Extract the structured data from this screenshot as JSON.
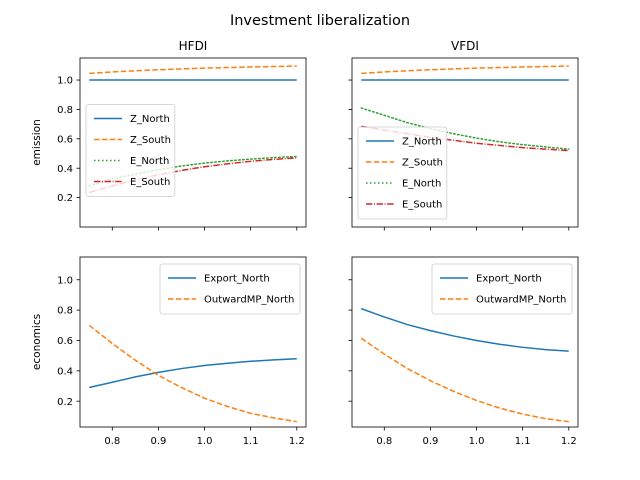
{
  "title": "Investment liberalization",
  "colors": {
    "blue": "#1f77b4",
    "orange": "#ff7f0e",
    "green": "#2ca02c",
    "red": "#d62728"
  },
  "chart_data": [
    {
      "id": "hfdi-emission",
      "type": "line",
      "title": "HFDI",
      "xlabel": "",
      "ylabel": "emission",
      "xlim": [
        0.73,
        1.22
      ],
      "ylim": [
        0.0,
        1.15
      ],
      "xticks": [
        0.8,
        0.9,
        1.0,
        1.1,
        1.2
      ],
      "yticks": [
        0.2,
        0.4,
        0.6,
        0.8,
        1.0
      ],
      "show_x_tick_labels": false,
      "show_y_tick_labels": true,
      "grid": false,
      "legend_loc": "center-left",
      "x": [
        0.75,
        0.8,
        0.85,
        0.9,
        0.95,
        1.0,
        1.05,
        1.1,
        1.15,
        1.2
      ],
      "series": [
        {
          "name": "Z_North",
          "color": "#1f77b4",
          "dash": "solid",
          "values": [
            1.0,
            1.0,
            1.0,
            1.0,
            1.0,
            1.0,
            1.0,
            1.0,
            1.0,
            1.0
          ]
        },
        {
          "name": "Z_South",
          "color": "#ff7f0e",
          "dash": "dashed",
          "values": [
            1.045,
            1.055,
            1.063,
            1.07,
            1.076,
            1.081,
            1.085,
            1.089,
            1.092,
            1.095
          ]
        },
        {
          "name": "E_North",
          "color": "#2ca02c",
          "dash": "dotted",
          "values": [
            0.28,
            0.325,
            0.36,
            0.39,
            0.415,
            0.435,
            0.45,
            0.462,
            0.472,
            0.48
          ]
        },
        {
          "name": "E_South",
          "color": "#d62728",
          "dash": "dashdot",
          "values": [
            0.235,
            0.28,
            0.32,
            0.355,
            0.385,
            0.41,
            0.43,
            0.447,
            0.46,
            0.47
          ]
        }
      ]
    },
    {
      "id": "vfdi-emission",
      "type": "line",
      "title": "VFDI",
      "xlabel": "",
      "ylabel": "",
      "xlim": [
        0.73,
        1.22
      ],
      "ylim": [
        0.0,
        1.15
      ],
      "xticks": [
        0.8,
        0.9,
        1.0,
        1.1,
        1.2
      ],
      "yticks": [
        0.2,
        0.4,
        0.6,
        0.8,
        1.0
      ],
      "show_x_tick_labels": false,
      "show_y_tick_labels": false,
      "grid": false,
      "legend_loc": "lower-left",
      "x": [
        0.75,
        0.8,
        0.85,
        0.9,
        0.95,
        1.0,
        1.05,
        1.1,
        1.15,
        1.2
      ],
      "series": [
        {
          "name": "Z_North",
          "color": "#1f77b4",
          "dash": "solid",
          "values": [
            1.0,
            1.0,
            1.0,
            1.0,
            1.0,
            1.0,
            1.0,
            1.0,
            1.0,
            1.0
          ]
        },
        {
          "name": "Z_South",
          "color": "#ff7f0e",
          "dash": "dashed",
          "values": [
            1.045,
            1.055,
            1.063,
            1.07,
            1.076,
            1.081,
            1.085,
            1.089,
            1.092,
            1.095
          ]
        },
        {
          "name": "E_North",
          "color": "#2ca02c",
          "dash": "dotted",
          "values": [
            0.81,
            0.76,
            0.71,
            0.67,
            0.635,
            0.605,
            0.58,
            0.56,
            0.545,
            0.53
          ]
        },
        {
          "name": "E_South",
          "color": "#d62728",
          "dash": "dashdot",
          "values": [
            0.685,
            0.66,
            0.635,
            0.61,
            0.59,
            0.57,
            0.555,
            0.54,
            0.53,
            0.52
          ]
        }
      ]
    },
    {
      "id": "hfdi-economics",
      "type": "line",
      "title": "",
      "xlabel": "",
      "ylabel": "economics",
      "xlim": [
        0.73,
        1.22
      ],
      "ylim": [
        0.03,
        1.15
      ],
      "xticks": [
        0.8,
        0.9,
        1.0,
        1.1,
        1.2
      ],
      "yticks": [
        0.2,
        0.4,
        0.6,
        0.8,
        1.0
      ],
      "show_x_tick_labels": true,
      "show_y_tick_labels": true,
      "grid": false,
      "legend_loc": "upper-right",
      "x": [
        0.75,
        0.8,
        0.85,
        0.9,
        0.95,
        1.0,
        1.05,
        1.1,
        1.15,
        1.2
      ],
      "series": [
        {
          "name": "Export_North",
          "color": "#1f77b4",
          "dash": "solid",
          "values": [
            0.29,
            0.325,
            0.36,
            0.39,
            0.415,
            0.435,
            0.45,
            0.463,
            0.472,
            0.48
          ]
        },
        {
          "name": "OutwardMP_North",
          "color": "#ff7f0e",
          "dash": "dashed",
          "values": [
            0.7,
            0.58,
            0.47,
            0.37,
            0.29,
            0.22,
            0.165,
            0.12,
            0.09,
            0.065
          ]
        }
      ]
    },
    {
      "id": "vfdi-economics",
      "type": "line",
      "title": "",
      "xlabel": "",
      "ylabel": "",
      "xlim": [
        0.73,
        1.22
      ],
      "ylim": [
        0.03,
        1.15
      ],
      "xticks": [
        0.8,
        0.9,
        1.0,
        1.1,
        1.2
      ],
      "yticks": [
        0.2,
        0.4,
        0.6,
        0.8,
        1.0
      ],
      "show_x_tick_labels": true,
      "show_y_tick_labels": false,
      "grid": false,
      "legend_loc": "upper-right",
      "x": [
        0.75,
        0.8,
        0.85,
        0.9,
        0.95,
        1.0,
        1.05,
        1.1,
        1.15,
        1.2
      ],
      "series": [
        {
          "name": "Export_North",
          "color": "#1f77b4",
          "dash": "solid",
          "values": [
            0.81,
            0.755,
            0.705,
            0.665,
            0.63,
            0.6,
            0.575,
            0.555,
            0.54,
            0.53
          ]
        },
        {
          "name": "OutwardMP_North",
          "color": "#ff7f0e",
          "dash": "dashed",
          "values": [
            0.615,
            0.51,
            0.415,
            0.335,
            0.265,
            0.205,
            0.155,
            0.115,
            0.085,
            0.065
          ]
        }
      ]
    }
  ]
}
